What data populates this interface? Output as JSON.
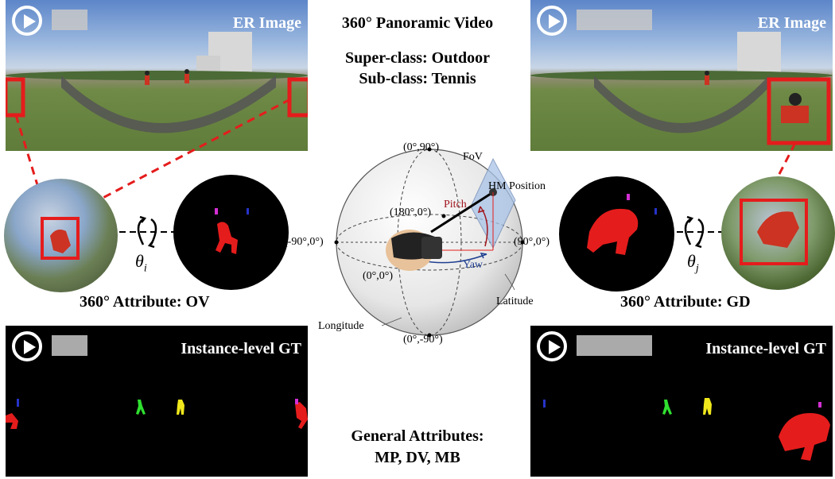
{
  "panels": {
    "er_left_title": "ER Image",
    "er_right_title": "ER Image",
    "gt_left_title": "Instance-level GT",
    "gt_right_title": "Instance-level GT"
  },
  "center": {
    "title": "360° Panoramic Video",
    "superclass": "Super-class: Outdoor",
    "subclass": "Sub-class: Tennis",
    "general_line1": "General Attributes:",
    "general_line2": "MP, DV, MB"
  },
  "attributes": {
    "left": "360° Attribute: OV",
    "right": "360° Attribute: GD"
  },
  "rotation": {
    "left_symbol": "θ",
    "left_sub": "i",
    "right_symbol": "θ",
    "right_sub": "j"
  },
  "sphere": {
    "top": "(0°,90°)",
    "bottom": "(0°,-90°)",
    "left": "(-90°,0°)",
    "right": "(90°,0°)",
    "back": "(180°,0°)",
    "front": "(0°,0°)",
    "fov": "FoV",
    "hm_position": "HM Position",
    "pitch": "Pitch",
    "yaw": "Yaw",
    "latitude": "Latitude",
    "longitude": "Longitude"
  },
  "colors": {
    "highlight": "#e51c1c",
    "pitch": "#a0141c",
    "yaw": "#1f3f8f",
    "fov_plane": "#a9c3e8"
  }
}
